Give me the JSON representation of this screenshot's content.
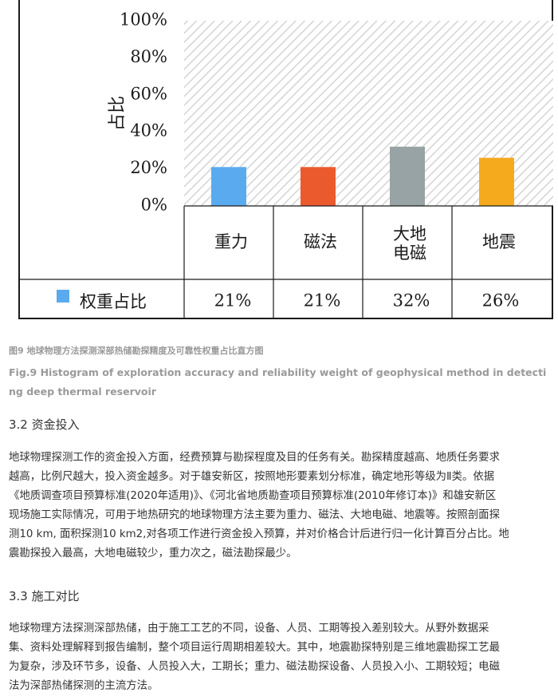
{
  "chart_data": {
    "type": "bar",
    "ylabel": "占比",
    "ylim": [
      0,
      100
    ],
    "yticks": [
      "0%",
      "20%",
      "40%",
      "60%",
      "80%",
      "100%"
    ],
    "ytick_values": [
      0,
      20,
      40,
      60,
      80,
      100
    ],
    "categories": [
      "重力",
      "磁法",
      "大地电磁",
      "地震"
    ],
    "category_display": [
      [
        "重力"
      ],
      [
        "磁法"
      ],
      [
        "大地",
        "电磁"
      ],
      [
        "地震"
      ]
    ],
    "values": [
      21,
      21,
      32,
      26
    ],
    "value_labels": [
      "21%",
      "21%",
      "32%",
      "26%"
    ],
    "colors": [
      "#5aaaf0",
      "#eb5a2d",
      "#97a3a4",
      "#f5aa1e"
    ],
    "background": "diagonal hatch",
    "legend": {
      "label": "权重占比",
      "color": "#5aaaf0",
      "placement": "left of data table"
    },
    "grid": false
  },
  "caption": {
    "cn": "图9 地球物理方法探测深部热储勘探精度及可靠性权重占比直方图",
    "en": "Fig.9 Histogram of exploration accuracy and reliability weight of geophysical method in detecting deep thermal reservoir"
  },
  "section_32": {
    "heading": "3.2 资金投入",
    "lines": [
      "地球物理探测工作的资金投入方面，经费预算与勘探程度及目的任务有关。勘探精度越高、地质任务要求",
      "越高，比例尺越大，投入资金越多。对于雄安新区，按照地形要素划分标准，确定地形等级为Ⅱ类。依据",
      "《地质调查项目预算标准(2020年适用)》、《河北省地质勘查项目预算标准(2010年修订本)》和雄安新区",
      "现场施工实际情况，可用于地热研究的地球物理方法主要为重力、磁法、大地电磁、地震等。按照剖面探",
      "测10 km, 面积探测10 km2,对各项工作进行资金投入预算，并对价格合计后进行归一化计算百分占比。地",
      "震勘探投入最高，大地电磁较少，重力次之，磁法勘探最少。"
    ]
  },
  "section_33": {
    "heading": "3.3 施工对比",
    "lines": [
      "地球物理方法探测深部热储，由于施工工艺的不同，设备、人员、工期等投入差别较大。从野外数据采",
      "集、资料处理解释到报告编制，整个项目运行周期相差较大。其中，地震勘探特别是三维地震勘探工艺最",
      "为复杂，涉及环节多，设备、人员投入大，工期长；重力、磁法勘探设备、人员投入小、工期较短；电磁",
      "法为深部热储探测的主流方法。"
    ]
  }
}
